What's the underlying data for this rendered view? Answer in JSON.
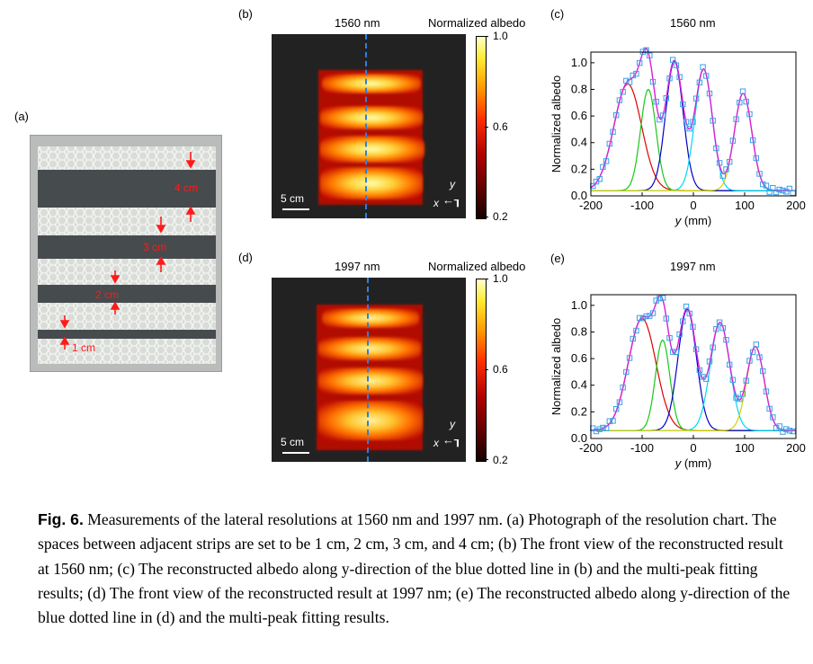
{
  "panels": {
    "a": {
      "label": "(a)",
      "annotations": [
        "4 cm",
        "3 cm",
        "2 cm",
        "1 cm"
      ]
    },
    "b": {
      "label": "(b)",
      "title": "1560 nm",
      "scale": "5 cm",
      "cbar_title": "Normalized albedo",
      "cbar_max": "1.0",
      "cbar_mid": "0.6",
      "cbar_min": "0.2",
      "axis_y": "y",
      "axis_x": "x"
    },
    "d": {
      "label": "(d)",
      "title": "1997 nm",
      "scale": "5 cm",
      "cbar_title": "Normalized albedo",
      "cbar_max": "1.0",
      "cbar_mid": "0.6",
      "cbar_min": "0.2",
      "axis_y": "y",
      "axis_x": "x"
    },
    "c": {
      "label": "(c)",
      "title": "1560 nm"
    },
    "e": {
      "label": "(e)",
      "title": "1997 nm"
    }
  },
  "colors": {
    "envelope": "#d61fd6",
    "data": "#3aa0e8",
    "peaks": [
      "#e00000",
      "#19c719",
      "#0000c8",
      "#00d8f0",
      "#d8d000"
    ]
  },
  "chart_data": [
    {
      "id": "c",
      "type": "line",
      "title": "1560 nm",
      "xlabel": "y (mm)",
      "ylabel": "Normalized albedo",
      "xlim": [
        -200,
        200
      ],
      "ylim": [
        0,
        1.08
      ],
      "xticks": [
        -200,
        -100,
        0,
        100,
        200
      ],
      "yticks": [
        0.0,
        0.2,
        0.4,
        0.6,
        0.8,
        1.0
      ],
      "peaks": [
        {
          "name": "peak 1",
          "center": -128,
          "amp": 0.8,
          "width": 27
        },
        {
          "name": "peak 2",
          "center": -88,
          "amp": 0.76,
          "width": 15
        },
        {
          "name": "peak 3",
          "center": -37,
          "amp": 0.97,
          "width": 17
        },
        {
          "name": "peak 4",
          "center": 20,
          "amp": 0.91,
          "width": 17
        },
        {
          "name": "peak 5",
          "center": 97,
          "amp": 0.73,
          "width": 17
        }
      ],
      "baseline": 0.04
    },
    {
      "id": "e",
      "type": "line",
      "title": "1997 nm",
      "xlabel": "y (mm)",
      "ylabel": "Normalized albedo",
      "xlim": [
        -200,
        200
      ],
      "ylim": [
        0,
        1.08
      ],
      "xticks": [
        -200,
        -100,
        0,
        100,
        200
      ],
      "yticks": [
        0.0,
        0.2,
        0.4,
        0.6,
        0.8,
        1.0
      ],
      "peaks": [
        {
          "name": "peak 1",
          "center": -100,
          "amp": 0.84,
          "width": 27
        },
        {
          "name": "peak 2",
          "center": -60,
          "amp": 0.68,
          "width": 14
        },
        {
          "name": "peak 3",
          "center": -12,
          "amp": 0.91,
          "width": 18
        },
        {
          "name": "peak 4",
          "center": 52,
          "amp": 0.81,
          "width": 19
        },
        {
          "name": "peak 5",
          "center": 121,
          "amp": 0.63,
          "width": 17
        }
      ],
      "baseline": 0.06
    }
  ],
  "caption": {
    "tag": "Fig. 6.",
    "text": " Measurements of the lateral resolutions at 1560 nm and 1997 nm. (a) Photograph of the resolution chart. The spaces between adjacent strips are set to be 1 cm, 2 cm, 3 cm, and 4 cm; (b) The front view of the reconstructed result at 1560 nm; (c) The reconstructed albedo along y-direction of the blue dotted line in (b) and the multi-peak fitting results; (d) The front view of the reconstructed result at 1997 nm; (e) The reconstructed albedo along y-direction of the blue dotted line in (d) and the multi-peak fitting results."
  }
}
